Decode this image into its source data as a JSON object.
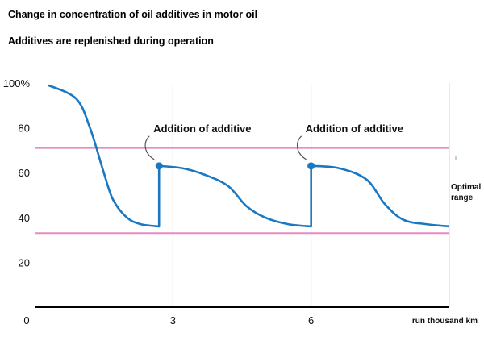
{
  "chart_data": {
    "type": "line",
    "title": "Change in concentration of oil additives in motor oil",
    "subtitle": "Additives are replenished during operation",
    "xlabel": "run thousand km",
    "ylabel": "",
    "xlim": [
      0,
      9
    ],
    "ylim": [
      0,
      100
    ],
    "x_ticks": [
      "0",
      "3",
      "6"
    ],
    "x_tick_values": [
      0,
      3,
      6
    ],
    "y_ticks": [
      "100%",
      "80",
      "60",
      "40",
      "20"
    ],
    "y_tick_values": [
      100,
      80,
      60,
      40,
      20
    ],
    "optimal_range": {
      "label": "Optimal range",
      "low": 33,
      "high": 71
    },
    "series": [
      {
        "x": [
          0.3,
          0.9,
          1.2,
          1.5,
          1.7,
          2.0,
          2.3,
          2.7,
          2.7,
          3.2,
          3.7,
          4.2,
          4.6,
          5.0,
          5.5,
          6.0,
          6.0,
          6.6,
          7.2,
          7.6,
          8.0,
          8.5,
          9.0
        ],
        "values": [
          99,
          93,
          80,
          60,
          48,
          40,
          37,
          36,
          63,
          62,
          59,
          54,
          45,
          40,
          37,
          36,
          63,
          62,
          57,
          46,
          39,
          37,
          36
        ]
      }
    ],
    "annotations": [
      {
        "text": "Addition of additive",
        "x": 2.7,
        "y": 63
      },
      {
        "text": "Addition of additive",
        "x": 6.0,
        "y": 63
      }
    ],
    "grid": "vertical"
  }
}
